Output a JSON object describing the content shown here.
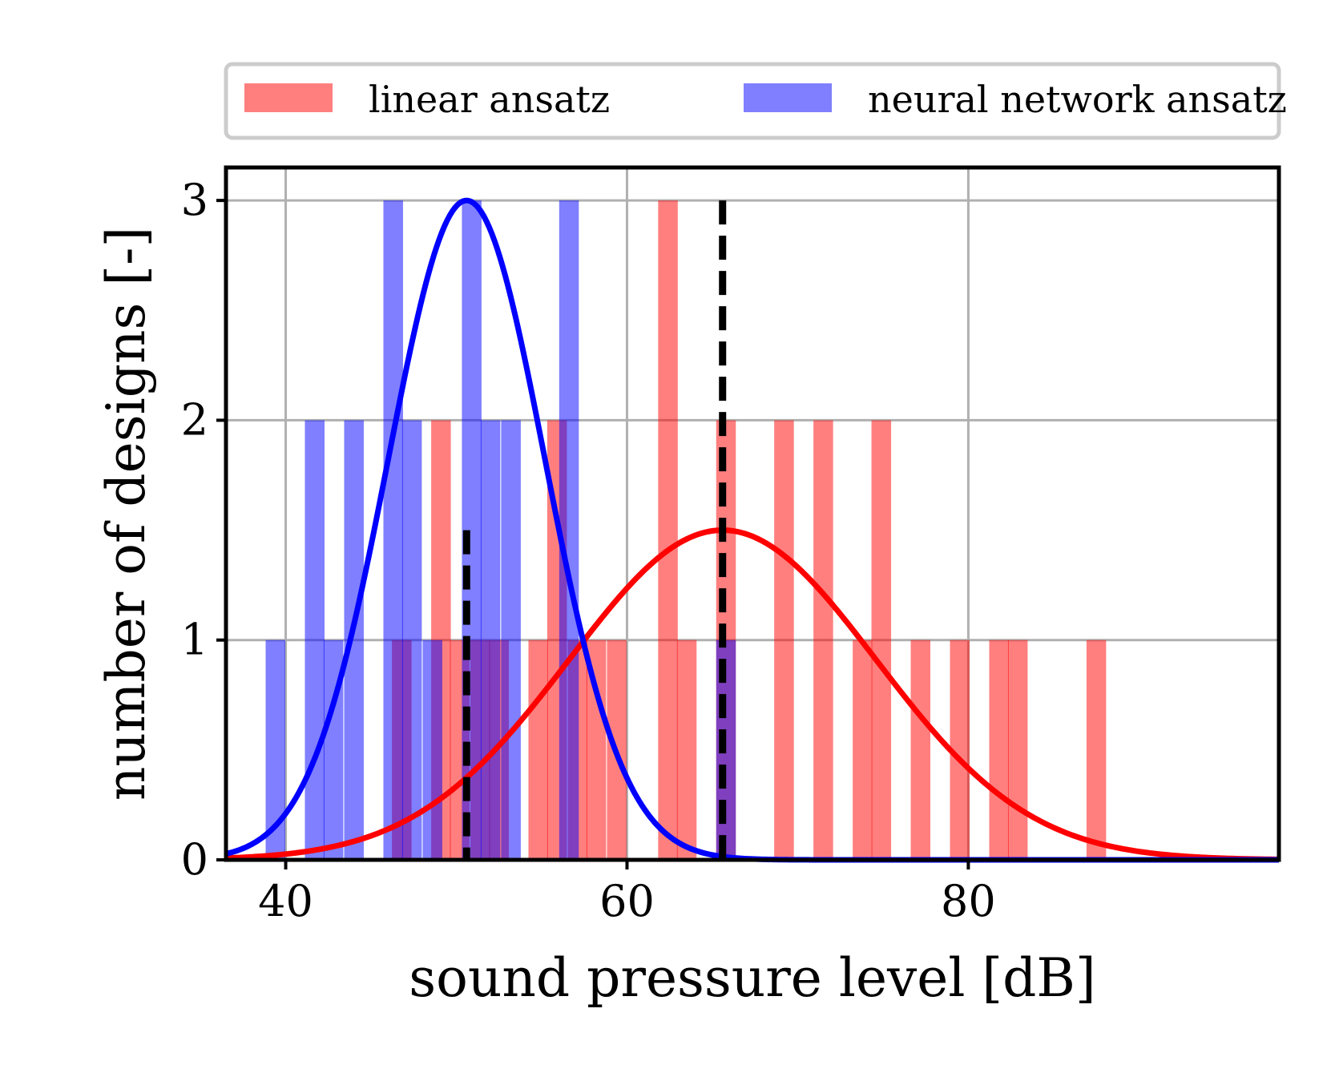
{
  "chart_data": {
    "type": "bar",
    "title": "",
    "xlabel": "sound pressure level [dB]",
    "ylabel": "number of designs [-]",
    "xlim": [
      36.5,
      98.2
    ],
    "ylim": [
      0,
      3.15
    ],
    "xticks": [
      40,
      60,
      80
    ],
    "yticks": [
      0,
      1,
      2,
      3
    ],
    "grid": true,
    "legend": {
      "placement": "top-outside",
      "columns": 2
    },
    "colors": {
      "linear_bar": "#ff0000",
      "nn_bar": "#0000ff",
      "overlap": "#7b3fbf",
      "linear_curve": "#ff0000",
      "nn_curve": "#0000ff",
      "grid": "#b0b0b0",
      "mean_line": "#000000"
    },
    "bin_width": 1.15,
    "series": [
      {
        "name": "linear ansatz",
        "bins": [
          {
            "x": 46.8,
            "count": 1
          },
          {
            "x": 49.1,
            "count": 2
          },
          {
            "x": 50.2,
            "count": 1
          },
          {
            "x": 51.4,
            "count": 1
          },
          {
            "x": 52.5,
            "count": 1
          },
          {
            "x": 54.8,
            "count": 1
          },
          {
            "x": 55.9,
            "count": 2
          },
          {
            "x": 57.1,
            "count": 1
          },
          {
            "x": 58.2,
            "count": 1
          },
          {
            "x": 59.4,
            "count": 1
          },
          {
            "x": 62.4,
            "count": 3
          },
          {
            "x": 63.5,
            "count": 1
          },
          {
            "x": 65.8,
            "count": 2
          },
          {
            "x": 69.2,
            "count": 2
          },
          {
            "x": 71.5,
            "count": 2
          },
          {
            "x": 73.8,
            "count": 1
          },
          {
            "x": 74.9,
            "count": 2
          },
          {
            "x": 77.2,
            "count": 1
          },
          {
            "x": 79.5,
            "count": 1
          },
          {
            "x": 81.8,
            "count": 1
          },
          {
            "x": 82.9,
            "count": 1
          },
          {
            "x": 87.5,
            "count": 1
          }
        ],
        "fit": {
          "mean": 65.6,
          "sigma": 9.0,
          "peak": 1.5
        }
      },
      {
        "name": "neural network ansatz",
        "bins": [
          {
            "x": 39.4,
            "count": 1
          },
          {
            "x": 41.7,
            "count": 2
          },
          {
            "x": 42.8,
            "count": 1
          },
          {
            "x": 44.0,
            "count": 2
          },
          {
            "x": 46.3,
            "count": 3
          },
          {
            "x": 47.4,
            "count": 2
          },
          {
            "x": 48.6,
            "count": 1
          },
          {
            "x": 50.9,
            "count": 3
          },
          {
            "x": 52.0,
            "count": 2
          },
          {
            "x": 53.2,
            "count": 2
          },
          {
            "x": 56.6,
            "count": 3
          },
          {
            "x": 65.8,
            "count": 1
          }
        ],
        "fit": {
          "mean": 50.6,
          "sigma": 4.6,
          "peak": 3.0
        }
      }
    ],
    "mean_lines": [
      50.6,
      65.6
    ]
  }
}
